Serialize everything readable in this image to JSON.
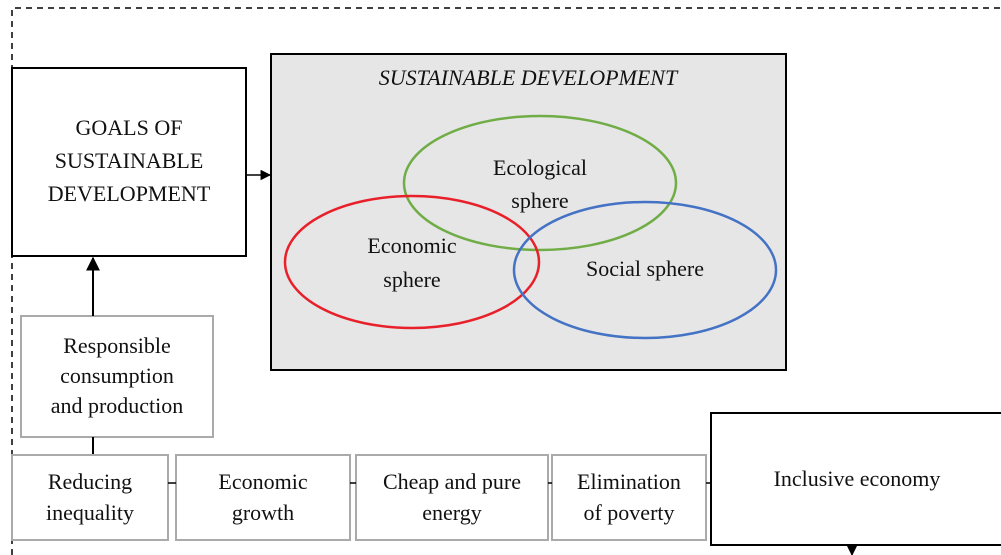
{
  "title": {
    "lines": [
      "SUSTAINABLE DEVELOPMENT"
    ]
  },
  "nodes": [
    {
      "id": "goals",
      "lines": [
        "GOALS OF",
        "SUSTAINABLE",
        "DEVELOPMENT"
      ]
    },
    {
      "id": "ecological",
      "lines": [
        "Ecological",
        "sphere"
      ]
    },
    {
      "id": "economic",
      "lines": [
        "Economic",
        "sphere"
      ]
    },
    {
      "id": "social",
      "lines": [
        "Social sphere"
      ]
    },
    {
      "id": "responsible",
      "lines": [
        "Responsible",
        "consumption",
        "and production"
      ]
    },
    {
      "id": "reducing",
      "lines": [
        "Reducing",
        "inequality"
      ]
    },
    {
      "id": "growth",
      "lines": [
        "Economic",
        "growth"
      ]
    },
    {
      "id": "energy",
      "lines": [
        "Cheap and pure",
        "energy"
      ]
    },
    {
      "id": "poverty",
      "lines": [
        "Elimination",
        "of poverty"
      ]
    },
    {
      "id": "inclusive",
      "lines": [
        "Inclusive economy"
      ]
    }
  ]
}
